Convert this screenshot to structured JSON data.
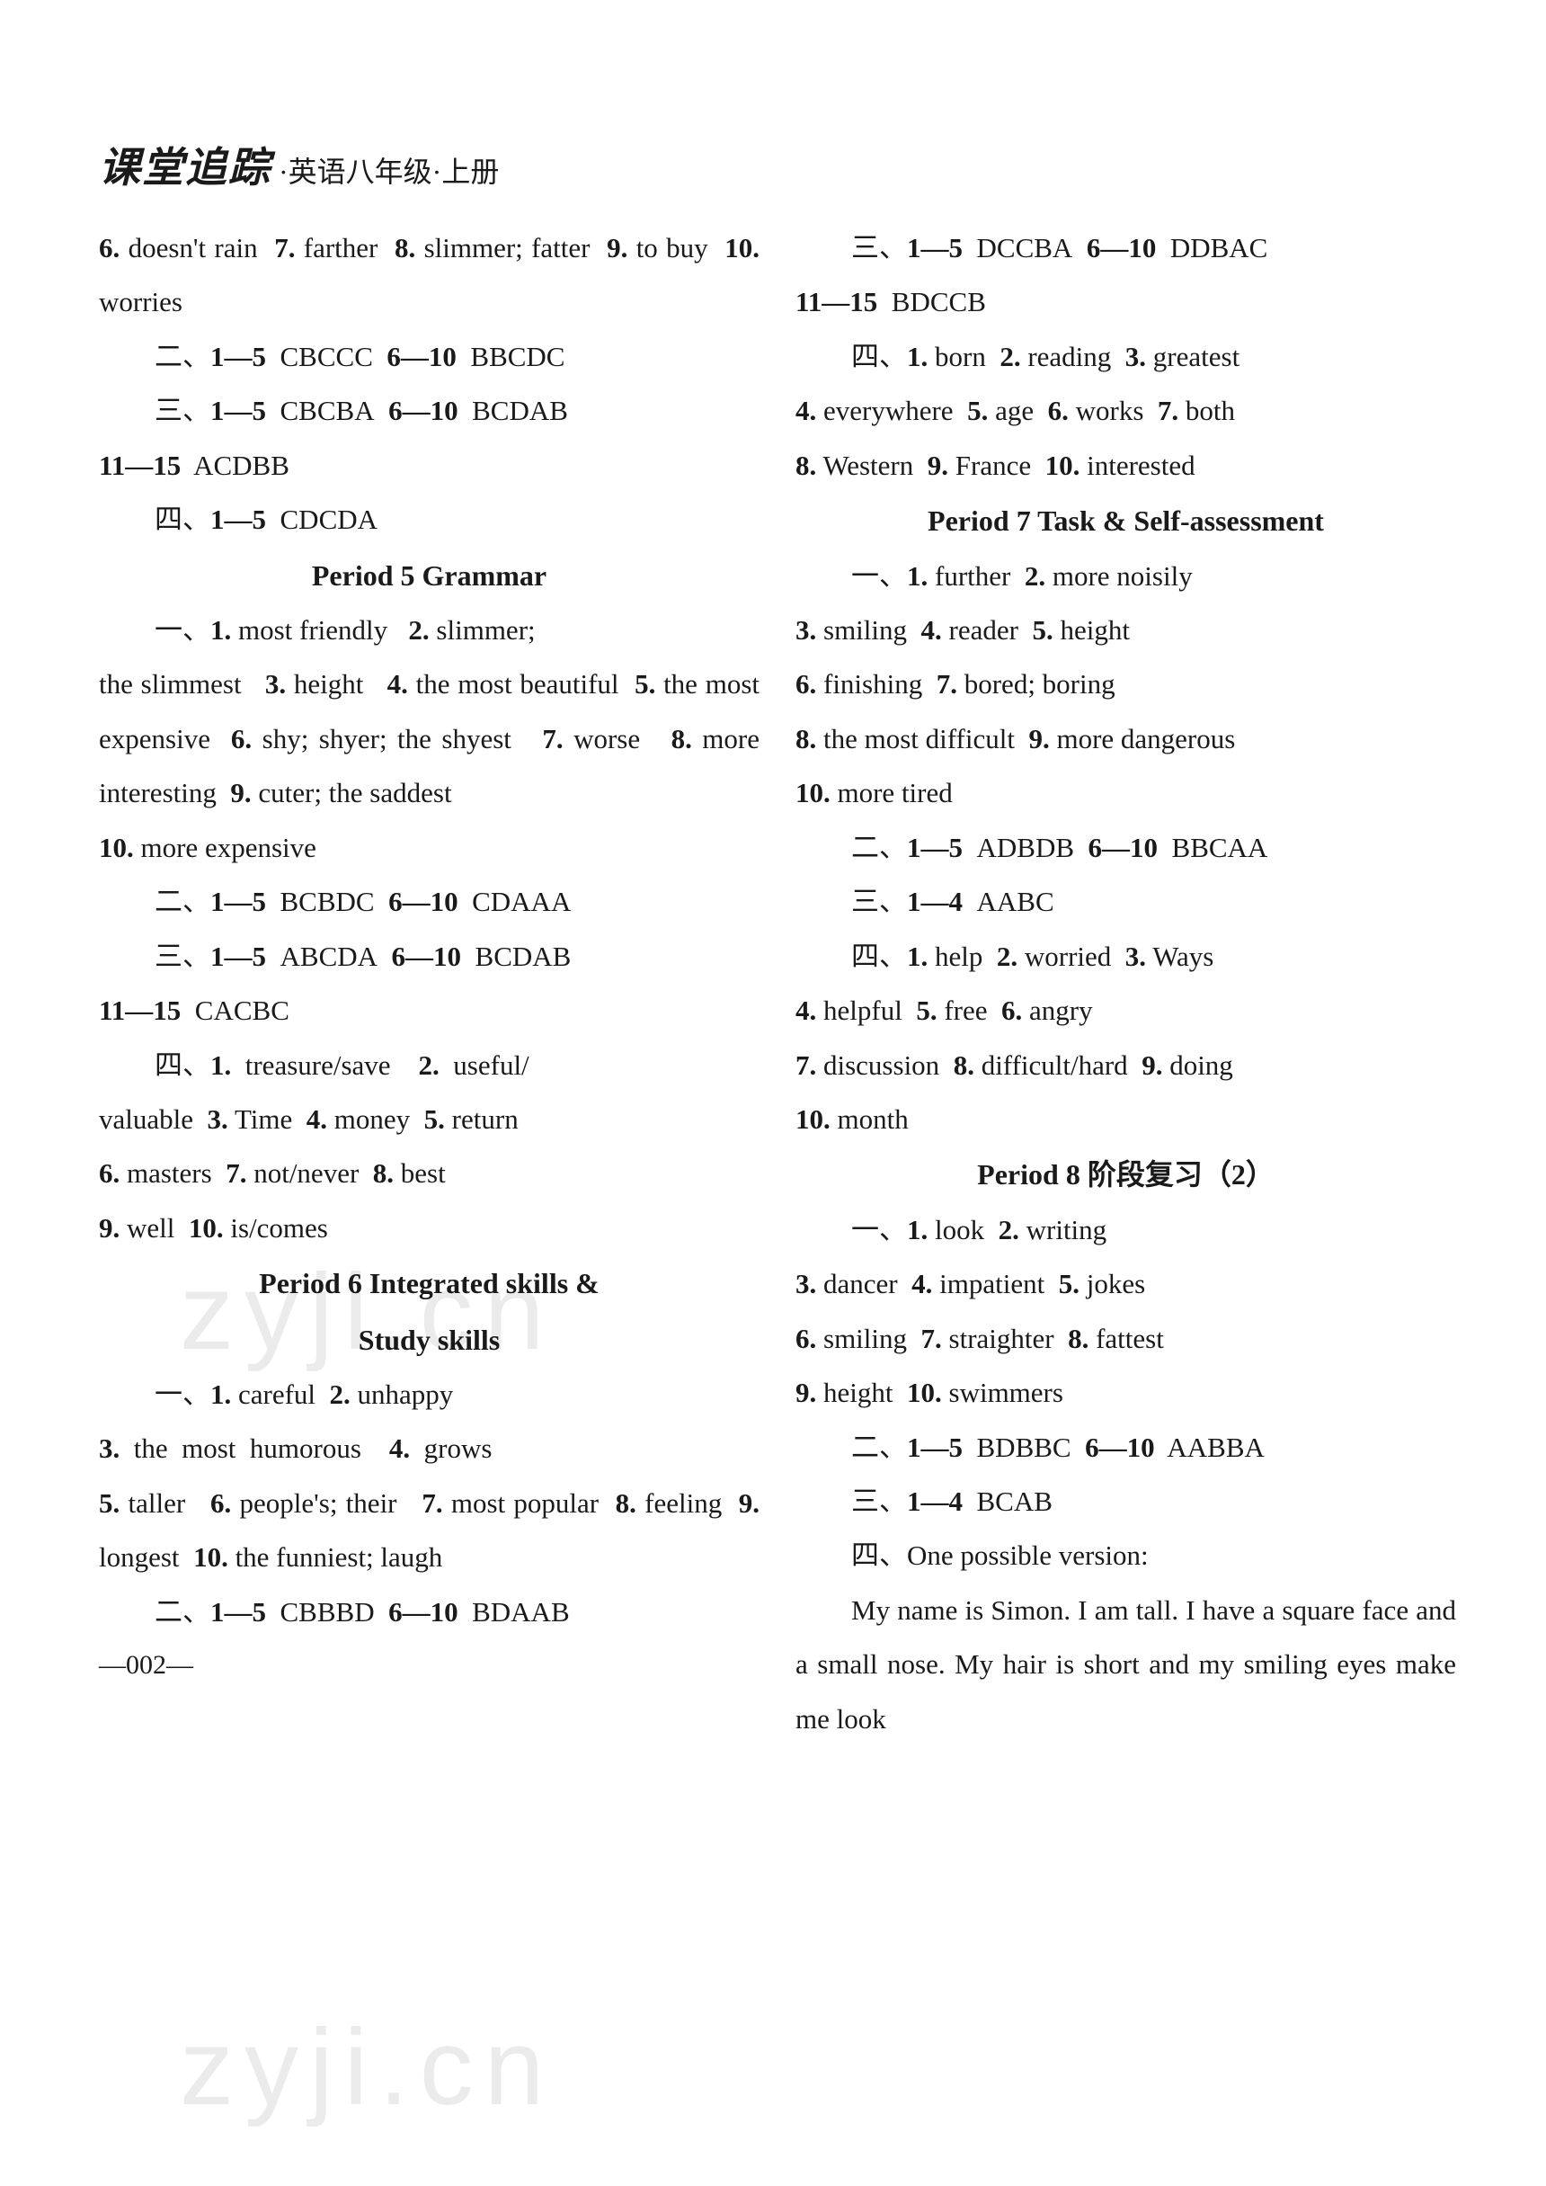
{
  "header": {
    "logo": "课堂追踪",
    "subtitle": "·英语八年级·上册"
  },
  "left": {
    "p1": "6. doesn't rain  7. farther  8. slimmer; fatter  9. to buy  10. worries",
    "p2": "二、1—5  CBCCC  6—10  BBCDC",
    "p3": "三、1—5  CBCBA  6—10  BCDAB  11—15  ACDBB",
    "p4": "四、1—5  CDCDA",
    "period5_title": "Period 5  Grammar",
    "p5": "一、1. most friendly  2. slimmer; the slimmest  3. height  4. the most beautiful  5. the most expensive  6. shy; shyer; the shyest  7. worse  8. more interesting  9. cuter; the saddest  10. more expensive",
    "p6": "二、1—5  BCBDC  6—10  CDAAA",
    "p7": "三、1—5  ABCDA  6—10  BCDAB  11—15  CACBC",
    "p8": "四、1. treasure/save  2. useful/valuable  3. Time  4. money  5. return  6. masters  7. not/never  8. best  9. well  10. is/comes",
    "period6_title": "Period 6  Integrated skills &",
    "period6_sub": "Study skills",
    "p9": "一、1. careful  2. unhappy  3. the most humorous  4. grows  5. taller  6. people's; their  7. most popular  8. feeling  9. longest  10. the funniest; laugh",
    "p10": "二、1—5  CBBBD  6—10  BDAAB"
  },
  "right": {
    "p1": "三、1—5  DCCBA  6—10  DDBAC  11—15  BDCCB",
    "p2": "四、1. born  2. reading  3. greatest  4. everywhere  5. age  6. works  7. both  8. Western  9. France  10. interested",
    "period7_title": "Period 7  Task & Self-assessment",
    "p3": "一、1. further  2. more noisily  3. smiling  4. reader  5. height  6. finishing  7. bored; boring  8. the most difficult  9. more dangerous  10. more tired",
    "p4": "二、1—5  ADBDB  6—10  BBCAA",
    "p5": "三、1—4  AABC",
    "p6": "四、1. help  2. worried  3. Ways  4. helpful  5. free  6. angry  7. discussion  8. difficult/hard  9. doing  10. month",
    "period8_title": "Period 8  阶段复习（2）",
    "p7": "一、1. look  2. writing  3. dancer  4. impatient  5. jokes  6. smiling  7. straighter  8. fattest  9. height  10. swimmers",
    "p8": "二、1—5  BDBBC  6—10  AABBA",
    "p9": "三、1—4  BCAB",
    "p10": "四、One possible version:",
    "p11": "My name is Simon. I am tall. I have a square face and a small nose. My hair is short and my smiling eyes make me look"
  },
  "page_number": "—002—",
  "watermark": "zyji.cn",
  "colors": {
    "text": "#1a1a1a",
    "background": "#ffffff",
    "watermark": "rgba(0,0,0,0.08)"
  }
}
